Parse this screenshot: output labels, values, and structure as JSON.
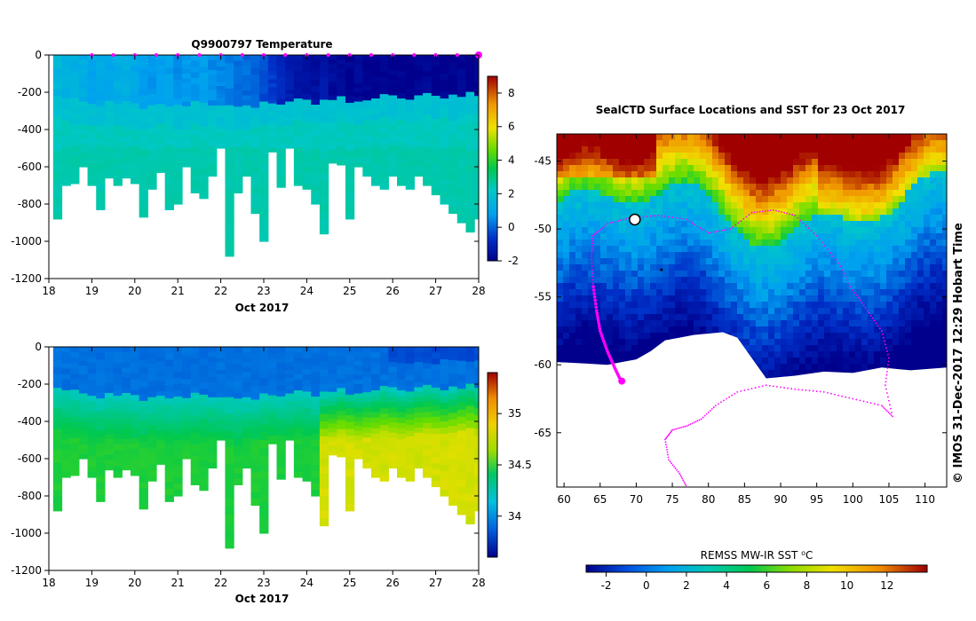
{
  "chart_data": [
    {
      "type": "heatmap",
      "title": "Q9900797  Temperature",
      "xlabel": "Oct 2017",
      "ylabel": "",
      "xlim": [
        18,
        28
      ],
      "ylim": [
        -1200,
        0
      ],
      "x_ticks": [
        "18",
        "19",
        "20",
        "21",
        "22",
        "23",
        "24",
        "25",
        "26",
        "27",
        "28"
      ],
      "y_ticks": [
        "0",
        "-200",
        "-400",
        "-600",
        "-800",
        "-1000",
        "-1200"
      ],
      "colorbar": {
        "min": -2,
        "max": 9,
        "ticks": [
          "-2",
          "0",
          "2",
          "4",
          "6",
          "8"
        ]
      },
      "profile_days": [
        18.2,
        18.4,
        18.6,
        18.8,
        19.0,
        19.2,
        19.4,
        19.6,
        19.8,
        20.0,
        20.2,
        20.4,
        20.6,
        20.8,
        21.0,
        21.2,
        21.4,
        21.6,
        21.8,
        22.0,
        22.2,
        22.4,
        22.6,
        22.8,
        23.0,
        23.2,
        23.4,
        23.6,
        23.8,
        24.0,
        24.2,
        24.4,
        24.6,
        24.8,
        25.0,
        25.2,
        25.4,
        25.6,
        25.8,
        26.0,
        26.2,
        26.4,
        26.6,
        26.8,
        27.0,
        27.2,
        27.4,
        27.6,
        27.8,
        28.0
      ],
      "max_depth": [
        -880,
        -700,
        -690,
        -600,
        -700,
        -830,
        -660,
        -700,
        -660,
        -690,
        -870,
        -720,
        -630,
        -830,
        -800,
        -600,
        -740,
        -770,
        -650,
        -500,
        -1080,
        -740,
        -650,
        -850,
        -1000,
        -520,
        -710,
        -500,
        -700,
        -720,
        -800,
        -960,
        -580,
        -590,
        -880,
        -600,
        -650,
        -700,
        -720,
        -650,
        -700,
        -720,
        -650,
        -700,
        -750,
        -800,
        -850,
        -900,
        -950,
        -880
      ],
      "surface_temp": [
        1.5,
        1.4,
        1.3,
        1.2,
        1.0,
        1.1,
        0.9,
        1.2,
        1.3,
        1.0,
        0.8,
        0.7,
        0.9,
        0.8,
        0.6,
        0.7,
        0.6,
        0.8,
        0.5,
        0.4,
        0.3,
        0.2,
        0.1,
        -0.1,
        -0.3,
        -0.6,
        -0.9,
        -1.2,
        -1.4,
        -1.5,
        -1.6,
        -1.4,
        -1.7,
        -1.8,
        -1.9,
        -1.8,
        -1.9,
        -2.0,
        -1.9,
        -2.0,
        -1.9,
        -2.0,
        -1.9,
        -1.8,
        -2.0,
        -1.9,
        -2.0,
        -1.9,
        -2.0,
        -1.9
      ],
      "deep_temp": 2.3,
      "cline_depth": [
        -220,
        -230,
        -240,
        -250,
        -260,
        -270,
        -260,
        -250,
        -260,
        -270,
        -280,
        -270,
        -260,
        -270,
        -280,
        -270,
        -260,
        -250,
        -260,
        -270,
        -280,
        -290,
        -280,
        -270,
        -260,
        -250,
        -260,
        -250,
        -240,
        -250,
        -260,
        -250,
        -240,
        -230,
        -240,
        -250,
        -240,
        -230,
        -220,
        -230,
        -240,
        -230,
        -220,
        -210,
        -220,
        -230,
        -220,
        -210,
        -200,
        -210
      ]
    },
    {
      "type": "heatmap",
      "title": "",
      "xlabel": "Oct 2017",
      "ylabel": "",
      "xlim": [
        18,
        28
      ],
      "ylim": [
        -1200,
        0
      ],
      "x_ticks": [
        "18",
        "19",
        "20",
        "21",
        "22",
        "23",
        "24",
        "25",
        "26",
        "27",
        "28"
      ],
      "y_ticks": [
        "0",
        "-200",
        "-400",
        "-600",
        "-800",
        "-1000",
        "-1200"
      ],
      "colorbar": {
        "min": 33.6,
        "max": 35.4,
        "ticks": [
          "34",
          "34.5",
          "35"
        ]
      },
      "surface_sal": 33.95,
      "deep_sal_early": 34.55,
      "deep_sal_late": 34.85
    },
    {
      "type": "heatmap",
      "title": "SealCTD Surface Locations and SST for 23 Oct 2017",
      "xlabel": "",
      "ylabel": "",
      "xlim": [
        59,
        113
      ],
      "ylim": [
        -69,
        -43
      ],
      "x_ticks": [
        "60",
        "65",
        "70",
        "75",
        "80",
        "85",
        "90",
        "95",
        "100",
        "105",
        "110"
      ],
      "y_ticks": [
        "-45",
        "-50",
        "-55",
        "-60",
        "-65"
      ],
      "colorbar": {
        "label": "REMSS MW-IR SST ⁰C",
        "min": -3,
        "max": 14,
        "ticks": [
          "-2",
          "0",
          "2",
          "4",
          "6",
          "8",
          "10",
          "12"
        ]
      },
      "ice_edge": [
        [
          59,
          -59.8
        ],
        [
          63,
          -59.9
        ],
        [
          66,
          -60.0
        ],
        [
          68,
          -59.8
        ],
        [
          70,
          -59.6
        ],
        [
          72,
          -59.0
        ],
        [
          74,
          -58.2
        ],
        [
          78,
          -57.8
        ],
        [
          82,
          -57.6
        ],
        [
          84,
          -58.0
        ],
        [
          86,
          -59.5
        ],
        [
          88,
          -61.0
        ],
        [
          92,
          -60.8
        ],
        [
          96,
          -60.5
        ],
        [
          100,
          -60.6
        ],
        [
          104,
          -60.2
        ],
        [
          108,
          -60.4
        ],
        [
          113,
          -60.2
        ]
      ],
      "track": [
        [
          67.9,
          -61.2
        ],
        [
          67.0,
          -60.2
        ],
        [
          66.0,
          -59.0
        ],
        [
          65.0,
          -57.5
        ],
        [
          64.5,
          -56.0
        ],
        [
          64.0,
          -54.0
        ],
        [
          63.8,
          -52.0
        ],
        [
          64.0,
          -50.5
        ],
        [
          66.0,
          -49.6
        ],
        [
          69.0,
          -49.2
        ],
        [
          73.0,
          -49.0
        ],
        [
          77.0,
          -49.3
        ],
        [
          80.0,
          -50.3
        ],
        [
          83.0,
          -50.0
        ],
        [
          86.0,
          -48.8
        ],
        [
          89.0,
          -48.6
        ],
        [
          92.0,
          -49.0
        ],
        [
          95.0,
          -50.5
        ],
        [
          98.0,
          -52.5
        ],
        [
          100.0,
          -54.5
        ],
        [
          102.0,
          -56.0
        ],
        [
          104.0,
          -57.5
        ],
        [
          105.0,
          -59.5
        ],
        [
          104.5,
          -61.5
        ],
        [
          105.5,
          -63.8
        ],
        [
          104.0,
          -63.0
        ],
        [
          100.0,
          -62.5
        ],
        [
          96.0,
          -62.0
        ],
        [
          92.0,
          -61.8
        ],
        [
          88.0,
          -61.5
        ],
        [
          84.0,
          -62.0
        ],
        [
          81.0,
          -63.0
        ],
        [
          79.0,
          -64.0
        ],
        [
          77.0,
          -64.5
        ],
        [
          75.0,
          -64.8
        ],
        [
          74.0,
          -65.5
        ],
        [
          74.5,
          -67.0
        ],
        [
          76.0,
          -68.0
        ],
        [
          77.0,
          -69.0
        ]
      ],
      "last_position": [
        68.0,
        -61.2
      ]
    }
  ],
  "credit": "© IMOS 31-Dec-2017 12:29 Hobart Time"
}
